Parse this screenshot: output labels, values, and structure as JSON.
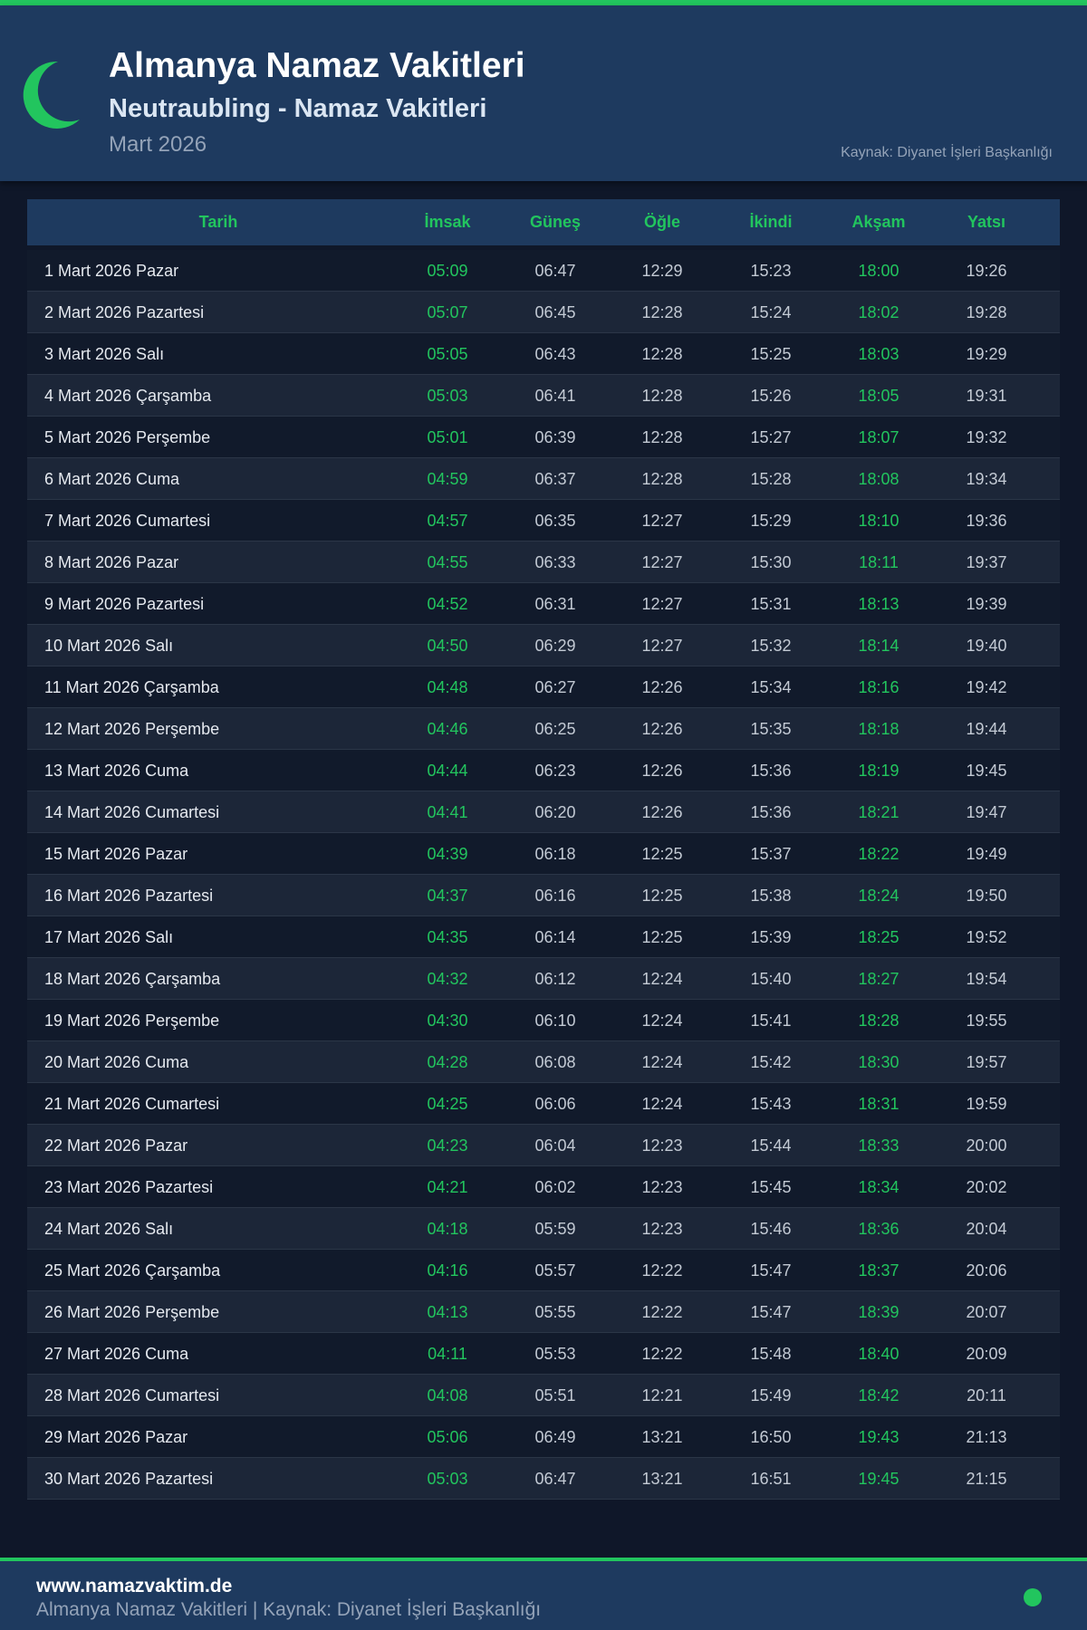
{
  "header": {
    "title": "Almanya Namaz Vakitleri",
    "subtitle": "Neutraubling - Namaz Vakitleri",
    "month": "Mart 2026",
    "source": "Kaynak: Diyanet İşleri Başkanlığı",
    "icon": "crescent-moon-icon"
  },
  "colors": {
    "accent": "#22c55e",
    "header_bg": "#1e3a5f",
    "page_bg": "#0f1729"
  },
  "table": {
    "columns": [
      "Tarih",
      "İmsak",
      "Güneş",
      "Öğle",
      "İkindi",
      "Akşam",
      "Yatsı"
    ],
    "rows": [
      [
        "1 Mart 2026 Pazar",
        "05:09",
        "06:47",
        "12:29",
        "15:23",
        "18:00",
        "19:26"
      ],
      [
        "2 Mart 2026 Pazartesi",
        "05:07",
        "06:45",
        "12:28",
        "15:24",
        "18:02",
        "19:28"
      ],
      [
        "3 Mart 2026 Salı",
        "05:05",
        "06:43",
        "12:28",
        "15:25",
        "18:03",
        "19:29"
      ],
      [
        "4 Mart 2026 Çarşamba",
        "05:03",
        "06:41",
        "12:28",
        "15:26",
        "18:05",
        "19:31"
      ],
      [
        "5 Mart 2026 Perşembe",
        "05:01",
        "06:39",
        "12:28",
        "15:27",
        "18:07",
        "19:32"
      ],
      [
        "6 Mart 2026 Cuma",
        "04:59",
        "06:37",
        "12:28",
        "15:28",
        "18:08",
        "19:34"
      ],
      [
        "7 Mart 2026 Cumartesi",
        "04:57",
        "06:35",
        "12:27",
        "15:29",
        "18:10",
        "19:36"
      ],
      [
        "8 Mart 2026 Pazar",
        "04:55",
        "06:33",
        "12:27",
        "15:30",
        "18:11",
        "19:37"
      ],
      [
        "9 Mart 2026 Pazartesi",
        "04:52",
        "06:31",
        "12:27",
        "15:31",
        "18:13",
        "19:39"
      ],
      [
        "10 Mart 2026 Salı",
        "04:50",
        "06:29",
        "12:27",
        "15:32",
        "18:14",
        "19:40"
      ],
      [
        "11 Mart 2026 Çarşamba",
        "04:48",
        "06:27",
        "12:26",
        "15:34",
        "18:16",
        "19:42"
      ],
      [
        "12 Mart 2026 Perşembe",
        "04:46",
        "06:25",
        "12:26",
        "15:35",
        "18:18",
        "19:44"
      ],
      [
        "13 Mart 2026 Cuma",
        "04:44",
        "06:23",
        "12:26",
        "15:36",
        "18:19",
        "19:45"
      ],
      [
        "14 Mart 2026 Cumartesi",
        "04:41",
        "06:20",
        "12:26",
        "15:36",
        "18:21",
        "19:47"
      ],
      [
        "15 Mart 2026 Pazar",
        "04:39",
        "06:18",
        "12:25",
        "15:37",
        "18:22",
        "19:49"
      ],
      [
        "16 Mart 2026 Pazartesi",
        "04:37",
        "06:16",
        "12:25",
        "15:38",
        "18:24",
        "19:50"
      ],
      [
        "17 Mart 2026 Salı",
        "04:35",
        "06:14",
        "12:25",
        "15:39",
        "18:25",
        "19:52"
      ],
      [
        "18 Mart 2026 Çarşamba",
        "04:32",
        "06:12",
        "12:24",
        "15:40",
        "18:27",
        "19:54"
      ],
      [
        "19 Mart 2026 Perşembe",
        "04:30",
        "06:10",
        "12:24",
        "15:41",
        "18:28",
        "19:55"
      ],
      [
        "20 Mart 2026 Cuma",
        "04:28",
        "06:08",
        "12:24",
        "15:42",
        "18:30",
        "19:57"
      ],
      [
        "21 Mart 2026 Cumartesi",
        "04:25",
        "06:06",
        "12:24",
        "15:43",
        "18:31",
        "19:59"
      ],
      [
        "22 Mart 2026 Pazar",
        "04:23",
        "06:04",
        "12:23",
        "15:44",
        "18:33",
        "20:00"
      ],
      [
        "23 Mart 2026 Pazartesi",
        "04:21",
        "06:02",
        "12:23",
        "15:45",
        "18:34",
        "20:02"
      ],
      [
        "24 Mart 2026 Salı",
        "04:18",
        "05:59",
        "12:23",
        "15:46",
        "18:36",
        "20:04"
      ],
      [
        "25 Mart 2026 Çarşamba",
        "04:16",
        "05:57",
        "12:22",
        "15:47",
        "18:37",
        "20:06"
      ],
      [
        "26 Mart 2026 Perşembe",
        "04:13",
        "05:55",
        "12:22",
        "15:47",
        "18:39",
        "20:07"
      ],
      [
        "27 Mart 2026 Cuma",
        "04:11",
        "05:53",
        "12:22",
        "15:48",
        "18:40",
        "20:09"
      ],
      [
        "28 Mart 2026 Cumartesi",
        "04:08",
        "05:51",
        "12:21",
        "15:49",
        "18:42",
        "20:11"
      ],
      [
        "29 Mart 2026 Pazar",
        "05:06",
        "06:49",
        "13:21",
        "16:50",
        "19:43",
        "21:13"
      ],
      [
        "30 Mart 2026 Pazartesi",
        "05:03",
        "06:47",
        "13:21",
        "16:51",
        "19:45",
        "21:15"
      ]
    ]
  },
  "footer": {
    "site": "www.namazvaktim.de",
    "text": "Almanya Namaz Vakitleri | Kaynak: Diyanet İşleri Başkanlığı",
    "status_icon": "green-dot-icon"
  }
}
